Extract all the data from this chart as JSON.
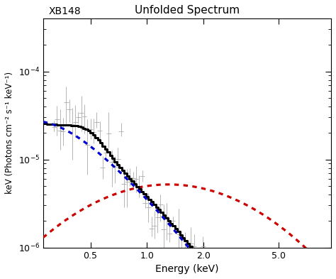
{
  "title": "Unfolded Spectrum",
  "label": "XB148",
  "xlabel": "Energy (keV)",
  "ylabel": "keV (Photons cm$^{-2}$ s$^{-1}$ keV$^{-1}$)",
  "xlim": [
    0.28,
    9.5
  ],
  "ylim": [
    1e-06,
    0.0004
  ],
  "bg_color": "#ffffff",
  "data_color": "#aaaaaa",
  "black_line_color": "#000000",
  "blue_dashed_color": "#0000cc",
  "red_dashed_color": "#cc0000",
  "seed": 12345
}
